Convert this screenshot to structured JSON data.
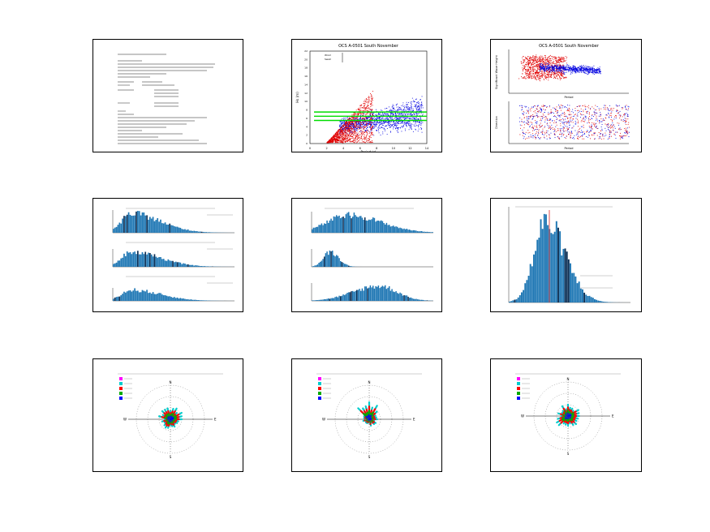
{
  "panels": [
    {
      "id": "summary",
      "type": "text",
      "lines": []
    },
    {
      "id": "scatter-main",
      "type": "scatter",
      "title": "OCS A-0501 South November",
      "xlabel": "Period (s)",
      "ylabel": "Hs (m)",
      "xlim": [
        0,
        14
      ],
      "ylim": [
        0,
        22
      ],
      "xticks": [
        "0",
        "2",
        "4",
        "6",
        "8",
        "10",
        "12",
        "14"
      ],
      "yticks": [
        "0",
        "2",
        "4",
        "6",
        "8",
        "10",
        "12",
        "14",
        "16",
        "18",
        "20",
        "22"
      ],
      "legend": [
        "Wind",
        "Swell"
      ],
      "colors": {
        "red": "#e00000",
        "blue": "#0000e0",
        "green": "#00dd00"
      },
      "hlines": [
        7.5,
        6.5,
        5.5
      ]
    },
    {
      "id": "scatter-dual",
      "type": "scatter",
      "title": "OCS A-0501 South November",
      "top_ylabel": "Significant Wave Height",
      "bottom_ylabel": "Direction",
      "xlabel": "Period",
      "colors": {
        "red": "#e00000",
        "blue": "#0000e0"
      }
    },
    {
      "id": "hist-triple-a",
      "type": "bar",
      "color": "#1f77b4"
    },
    {
      "id": "hist-triple-b",
      "type": "bar",
      "color": "#1f77b4"
    },
    {
      "id": "hist-single",
      "type": "bar",
      "color": "#1f77b4",
      "highlight_color": "#d62728"
    },
    {
      "id": "rose-a",
      "type": "rose",
      "compass": [
        "N",
        "S",
        "E",
        "W"
      ],
      "legend_colors": [
        "#ff00ff",
        "#00cccc",
        "#ff0000",
        "#00aa00",
        "#0000ff"
      ]
    },
    {
      "id": "rose-b",
      "type": "rose",
      "compass": [
        "N",
        "S",
        "E",
        "W"
      ],
      "legend_colors": [
        "#ff00ff",
        "#00cccc",
        "#ff0000",
        "#00aa00",
        "#0000ff"
      ]
    },
    {
      "id": "rose-c",
      "type": "rose",
      "compass": [
        "N",
        "S",
        "E",
        "W"
      ],
      "legend_colors": [
        "#ff00ff",
        "#00cccc",
        "#ff0000",
        "#00aa00",
        "#0000ff"
      ]
    }
  ]
}
